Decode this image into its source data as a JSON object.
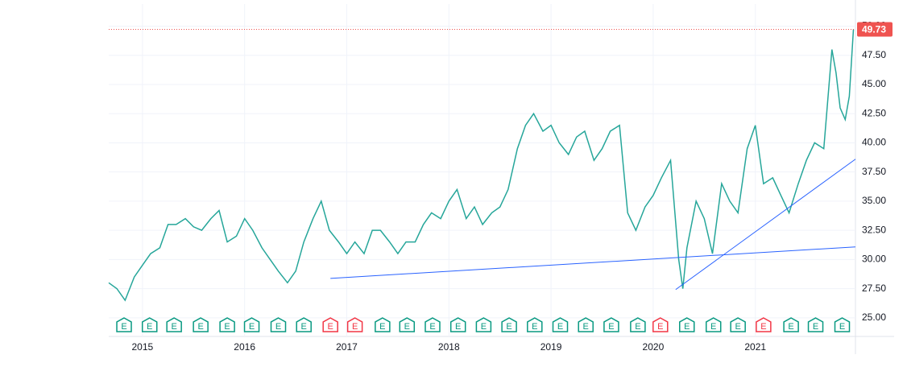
{
  "chart_data": {
    "type": "line",
    "color": "#26a69a",
    "grid": true,
    "x": [
      2014.67,
      2014.75,
      2014.83,
      2014.92,
      2015.0,
      2015.08,
      2015.17,
      2015.25,
      2015.33,
      2015.42,
      2015.5,
      2015.58,
      2015.67,
      2015.75,
      2015.83,
      2015.92,
      2016.0,
      2016.08,
      2016.17,
      2016.25,
      2016.33,
      2016.42,
      2016.5,
      2016.58,
      2016.67,
      2016.75,
      2016.83,
      2016.92,
      2017.0,
      2017.08,
      2017.17,
      2017.25,
      2017.33,
      2017.42,
      2017.5,
      2017.58,
      2017.67,
      2017.75,
      2017.83,
      2017.92,
      2018.0,
      2018.08,
      2018.17,
      2018.25,
      2018.33,
      2018.42,
      2018.5,
      2018.58,
      2018.67,
      2018.75,
      2018.83,
      2018.92,
      2019.0,
      2019.08,
      2019.17,
      2019.25,
      2019.33,
      2019.42,
      2019.5,
      2019.58,
      2019.67,
      2019.75,
      2019.83,
      2019.92,
      2020.0,
      2020.08,
      2020.17,
      2020.25,
      2020.29,
      2020.33,
      2020.42,
      2020.5,
      2020.58,
      2020.67,
      2020.75,
      2020.83,
      2020.92,
      2021.0,
      2021.08,
      2021.17,
      2021.25,
      2021.33,
      2021.42,
      2021.5,
      2021.58,
      2021.67,
      2021.75,
      2021.79,
      2021.83,
      2021.88,
      2021.92,
      2021.96
    ],
    "values": [
      28,
      27.5,
      26.5,
      28.5,
      29.5,
      30.5,
      31,
      33,
      33,
      33.5,
      32.8,
      32.5,
      33.5,
      34.2,
      31.5,
      32,
      33.5,
      32.5,
      31,
      30,
      29,
      28,
      29,
      31.5,
      33.5,
      35,
      32.5,
      31.5,
      30.5,
      31.5,
      30.5,
      32.5,
      32.5,
      31.5,
      30.5,
      31.5,
      31.5,
      33,
      34,
      33.5,
      35,
      36,
      33.5,
      34.5,
      33,
      34,
      34.5,
      36,
      39.5,
      41.5,
      42.5,
      41,
      41.5,
      40,
      39,
      40.5,
      41,
      38.5,
      39.5,
      41,
      41.5,
      34,
      32.5,
      34.5,
      35.5,
      37,
      38.5,
      30,
      27.5,
      31,
      35,
      33.5,
      30.5,
      36.5,
      35,
      34,
      39.5,
      41.5,
      36.5,
      37,
      35.5,
      34,
      36.5,
      38.5,
      40,
      39.5,
      48,
      46,
      43,
      42,
      44,
      49.73
    ],
    "xlim": [
      2014.67,
      2021.98
    ],
    "xticks": [
      2015,
      2016,
      2017,
      2018,
      2019,
      2020,
      2021
    ],
    "ylim": [
      23.4,
      51.9
    ],
    "yticks": [
      {
        "value": 25,
        "label": "25.00"
      },
      {
        "value": 27.5,
        "label": "27.50"
      },
      {
        "value": 30,
        "label": "30.00"
      },
      {
        "value": 32.5,
        "label": "32.50"
      },
      {
        "value": 35,
        "label": "35.00"
      },
      {
        "value": 37.5,
        "label": "37.50"
      },
      {
        "value": 40,
        "label": "40.00"
      },
      {
        "value": 42.5,
        "label": "42.50"
      },
      {
        "value": 45,
        "label": "45.00"
      },
      {
        "value": 47.5,
        "label": "47.50"
      },
      {
        "value": 50,
        "label": "50.00"
      }
    ],
    "last_price": {
      "value": 49.73,
      "label": "49.73",
      "color": "#ef5350"
    },
    "trendlines": [
      {
        "x": [
          2016.84,
          2021.98
        ],
        "y": [
          28.38,
          31.08
        ],
        "color": "#2962ff"
      },
      {
        "x": [
          2020.22,
          2021.98
        ],
        "y": [
          27.42,
          38.6
        ],
        "color": "#2962ff"
      }
    ],
    "earnings": {
      "label": "E",
      "x": [
        2014.82,
        2015.07,
        2015.31,
        2015.57,
        2015.83,
        2016.07,
        2016.33,
        2016.58,
        2016.84,
        2017.08,
        2017.35,
        2017.59,
        2017.84,
        2018.09,
        2018.34,
        2018.59,
        2018.84,
        2019.09,
        2019.34,
        2019.59,
        2019.85,
        2020.07,
        2020.33,
        2020.59,
        2020.83,
        2021.08,
        2021.35,
        2021.59,
        2021.85
      ],
      "colors": [
        "#089981",
        "#089981",
        "#089981",
        "#089981",
        "#089981",
        "#089981",
        "#089981",
        "#089981",
        "#f23645",
        "#f23645",
        "#089981",
        "#089981",
        "#089981",
        "#089981",
        "#089981",
        "#089981",
        "#089981",
        "#089981",
        "#089981",
        "#089981",
        "#089981",
        "#f23645",
        "#089981",
        "#089981",
        "#089981",
        "#f23645",
        "#089981",
        "#089981",
        "#089981"
      ]
    }
  }
}
